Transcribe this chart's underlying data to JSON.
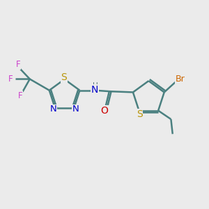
{
  "background_color": "#ebebeb",
  "bond_color": "#4a8080",
  "bond_width": 1.8,
  "atom_colors": {
    "S": "#b8960a",
    "N": "#0000cc",
    "O": "#cc0000",
    "F": "#cc44cc",
    "Br": "#cc6600",
    "H": "#557777",
    "C": "#000000"
  },
  "font_size": 8.5
}
